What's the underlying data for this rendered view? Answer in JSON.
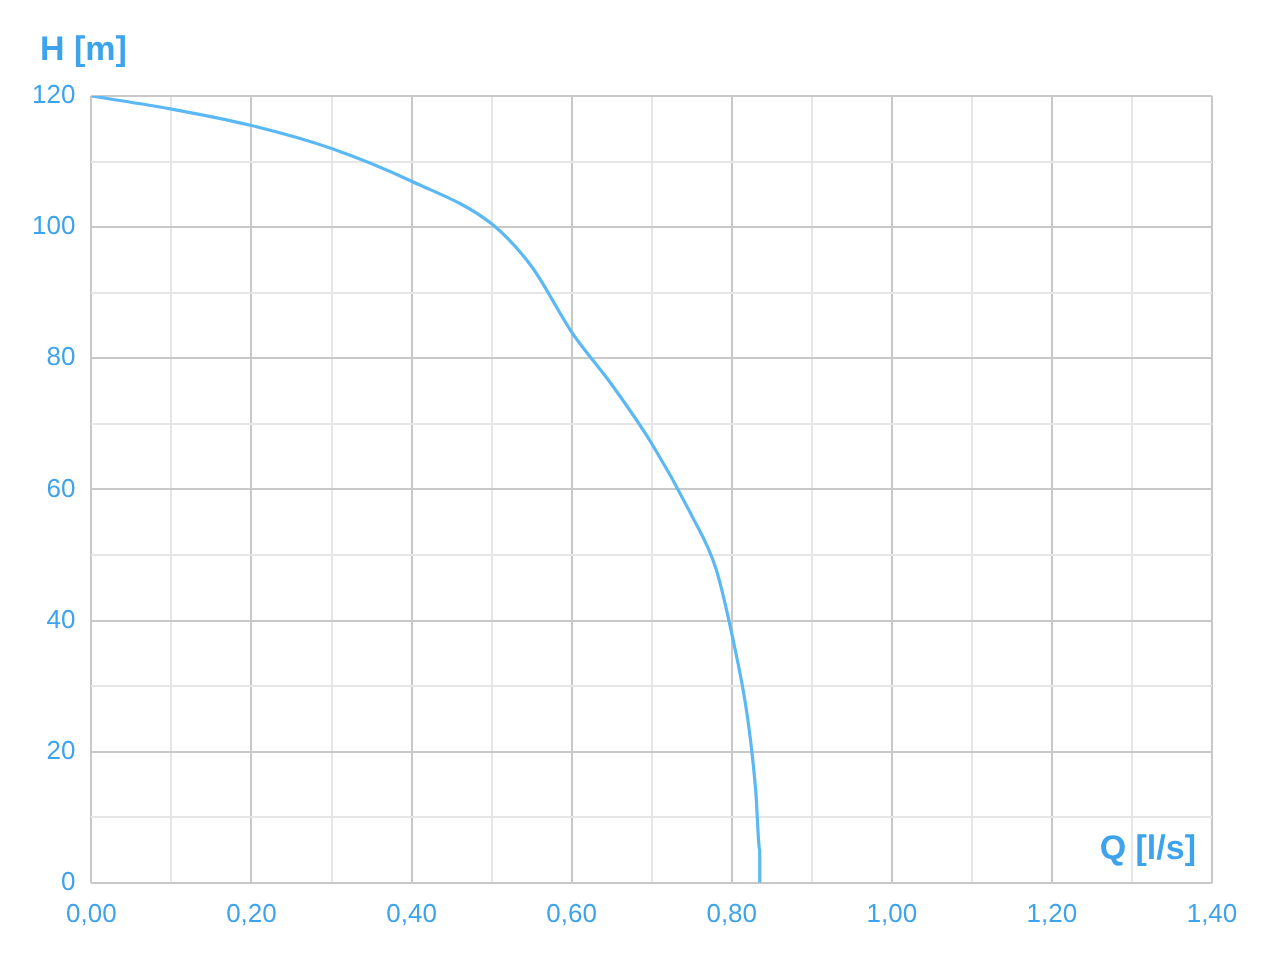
{
  "chart_data": {
    "type": "line",
    "xlabel": "Q [l/s]",
    "ylabel": "H [m]",
    "x": [
      0,
      0.1,
      0.2,
      0.3,
      0.4,
      0.5,
      0.55,
      0.6,
      0.65,
      0.7,
      0.75,
      0.78,
      0.8,
      0.82,
      0.83,
      0.835,
      0.835
    ],
    "series": [
      {
        "color": "#5ab8f5",
        "values": [
          120,
          118,
          115.5,
          112,
          107,
          100.5,
          94,
          84,
          76,
          67,
          56,
          48,
          38,
          25,
          14,
          5,
          0
        ]
      }
    ],
    "xlim": [
      0,
      1.4
    ],
    "xticks": [
      {
        "value": 0,
        "label": "0,00"
      },
      {
        "value": 0.1,
        "label": null
      },
      {
        "value": 0.2,
        "label": "0,20"
      },
      {
        "value": 0.3,
        "label": null
      },
      {
        "value": 0.4,
        "label": "0,40"
      },
      {
        "value": 0.5,
        "label": null
      },
      {
        "value": 0.6,
        "label": "0,60"
      },
      {
        "value": 0.7,
        "label": null
      },
      {
        "value": 0.8,
        "label": "0,80"
      },
      {
        "value": 0.9,
        "label": null
      },
      {
        "value": 1.0,
        "label": "1,00"
      },
      {
        "value": 1.1,
        "label": null
      },
      {
        "value": 1.2,
        "label": "1,20"
      },
      {
        "value": 1.3,
        "label": null
      },
      {
        "value": 1.4,
        "label": "1,40"
      }
    ],
    "ylim": [
      0,
      120
    ],
    "yticks": [
      0,
      {
        "value": 10,
        "label": null
      },
      20,
      {
        "value": 30,
        "label": null
      },
      40,
      {
        "value": 50,
        "label": null
      },
      60,
      {
        "value": 70,
        "label": null
      },
      80,
      {
        "value": 90,
        "label": null
      },
      100,
      {
        "value": 110,
        "label": null
      },
      120
    ],
    "grid": true,
    "legend": false,
    "marker": "none",
    "line_style": "solid"
  }
}
